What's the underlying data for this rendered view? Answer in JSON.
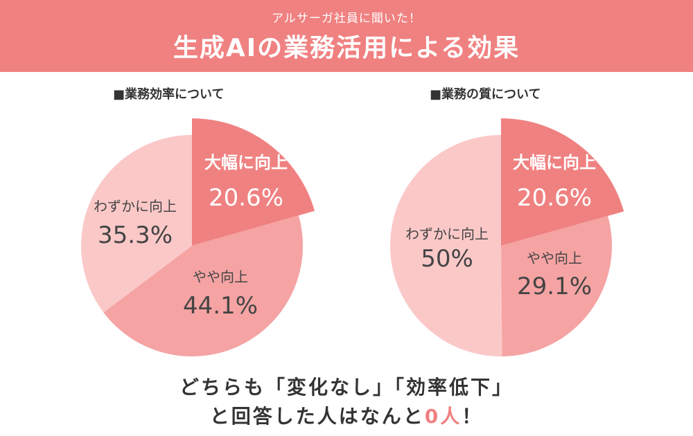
{
  "header": {
    "subtitle": "アルサーガ社員に聞いた！",
    "title": "生成AIの業務活用による効果"
  },
  "colors": {
    "banner": "#f08181",
    "slice_large": "#f08181",
    "slice_medium": "#f5a3a3",
    "slice_small": "#fbc8c8",
    "text": "#444444"
  },
  "chart_data": [
    {
      "type": "pie",
      "title": "■業務効率について",
      "categories": [
        "大幅に向上",
        "やや向上",
        "わずかに向上"
      ],
      "values": [
        20.6,
        44.1,
        35.3
      ],
      "labels": [
        "20.6%",
        "44.1%",
        "35.3%"
      ]
    },
    {
      "type": "pie",
      "title": "■業務の質について",
      "categories": [
        "大幅に向上",
        "やや向上",
        "わずかに向上"
      ],
      "values": [
        20.6,
        29.1,
        50
      ],
      "labels": [
        "20.6%",
        "29.1%",
        "50%"
      ]
    }
  ],
  "footer": {
    "line1": "どちらも「変化なし」「効率低下」",
    "line2_prefix": "と回答した人はなんと",
    "line2_highlight": "0人",
    "line2_suffix": "！"
  }
}
